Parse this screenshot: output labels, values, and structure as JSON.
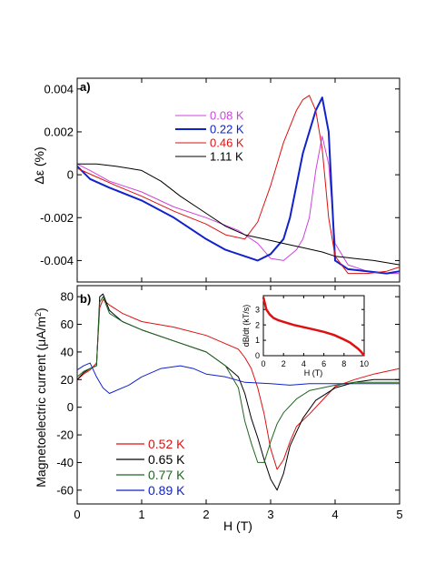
{
  "chart_data": [
    {
      "panel_label": "a)",
      "type": "line",
      "ylabel": "Δε (%)",
      "xlim": [
        0,
        5
      ],
      "ylim": [
        -0.005,
        0.0045
      ],
      "xticks": [
        0,
        1,
        2,
        3,
        4,
        5
      ],
      "yticks": [
        -0.004,
        -0.002,
        0,
        0.002,
        0.004
      ],
      "ytick_labels": [
        "-0.004",
        "-0.002",
        "0",
        "0.002",
        "0.004"
      ],
      "legend_position": "top-center",
      "series": [
        {
          "name": "0.08 K",
          "color": "#cc44dd",
          "width": 1.0,
          "x": [
            0,
            0.2,
            0.5,
            1.0,
            1.5,
            2.0,
            2.5,
            2.8,
            3.0,
            3.2,
            3.4,
            3.5,
            3.6,
            3.7,
            3.8,
            3.9,
            4.0,
            4.2,
            4.5,
            4.8,
            5.0
          ],
          "y": [
            0.0005,
            0.0002,
            -0.0003,
            -0.0008,
            -0.0015,
            -0.002,
            -0.0026,
            -0.0032,
            -0.0039,
            -0.004,
            -0.0035,
            -0.003,
            -0.002,
            0.0002,
            0.0018,
            0.0005,
            -0.0032,
            -0.0042,
            -0.0045,
            -0.0046,
            -0.0046
          ]
        },
        {
          "name": "0.22 K",
          "color": "#1122cc",
          "width": 2.0,
          "x": [
            0,
            0.2,
            0.5,
            1.0,
            1.5,
            2.0,
            2.3,
            2.6,
            2.8,
            3.0,
            3.2,
            3.3,
            3.4,
            3.5,
            3.6,
            3.7,
            3.8,
            3.9,
            4.0,
            4.2,
            4.5,
            4.8,
            5.0
          ],
          "y": [
            0.0004,
            -0.0002,
            -0.0006,
            -0.0012,
            -0.002,
            -0.003,
            -0.0035,
            -0.0038,
            -0.004,
            -0.0037,
            -0.003,
            -0.002,
            -0.0005,
            0.001,
            0.002,
            0.003,
            0.0036,
            0.002,
            -0.004,
            -0.0044,
            -0.0045,
            -0.0046,
            -0.0045
          ]
        },
        {
          "name": "0.46 K",
          "color": "#dd1111",
          "width": 1.0,
          "x": [
            0,
            0.3,
            0.6,
            1.0,
            1.5,
            2.0,
            2.3,
            2.6,
            2.8,
            3.0,
            3.2,
            3.4,
            3.5,
            3.6,
            3.7,
            3.8,
            3.9,
            4.0,
            4.2,
            4.5,
            4.8,
            5.0
          ],
          "y": [
            0.0003,
            -0.0001,
            -0.0005,
            -0.001,
            -0.0017,
            -0.0023,
            -0.0028,
            -0.003,
            -0.0022,
            -0.0005,
            0.0015,
            0.003,
            0.0035,
            0.0037,
            0.003,
            0.0012,
            -0.002,
            -0.0038,
            -0.0046,
            -0.0046,
            -0.0045,
            -0.0043
          ]
        },
        {
          "name": "1.11 K",
          "color": "#000000",
          "width": 1.0,
          "x": [
            0,
            0.3,
            0.6,
            0.8,
            1.0,
            1.3,
            1.6,
            2.0,
            2.3,
            2.6,
            2.9,
            3.2,
            3.5,
            3.8,
            4.0,
            4.3,
            4.6,
            4.8,
            5.0
          ],
          "y": [
            0.0005,
            0.0005,
            0.0004,
            0.0003,
            0.0002,
            -0.0003,
            -0.001,
            -0.0018,
            -0.0024,
            -0.0028,
            -0.003,
            -0.0032,
            -0.0034,
            -0.0036,
            -0.0038,
            -0.0039,
            -0.004,
            -0.0041,
            -0.0042
          ]
        }
      ]
    },
    {
      "panel_label": "b)",
      "type": "line",
      "xlabel": "H (T)",
      "ylabel": "Magnetoelectric current (μA/m²)",
      "ylabel_main": "Magnetoelectric current (μA/m",
      "ylabel_sup": "2",
      "ylabel_close": ")",
      "xlim": [
        0,
        5
      ],
      "ylim": [
        -70,
        88
      ],
      "xticks": [
        0,
        1,
        2,
        3,
        4,
        5
      ],
      "yticks": [
        -60,
        -40,
        -20,
        0,
        20,
        40,
        60,
        80
      ],
      "legend_position": "bottom-left",
      "series": [
        {
          "name": "0.52 K",
          "color": "#dd1111",
          "x": [
            0,
            0.1,
            0.2,
            0.3,
            0.35,
            0.4,
            0.5,
            0.7,
            1.0,
            1.5,
            2.0,
            2.3,
            2.5,
            2.6,
            2.7,
            2.8,
            2.9,
            3.0,
            3.1,
            3.2,
            3.3,
            3.4,
            3.6,
            3.8,
            4.0,
            4.3,
            4.6,
            5.0
          ],
          "y": [
            20,
            24,
            27,
            32,
            72,
            78,
            74,
            68,
            62,
            58,
            52,
            46,
            42,
            36,
            28,
            14,
            -5,
            -30,
            -45,
            -38,
            -25,
            -14,
            -5,
            5,
            15,
            20,
            24,
            28
          ]
        },
        {
          "name": "0.65 K",
          "color": "#000000",
          "x": [
            0,
            0.1,
            0.2,
            0.3,
            0.35,
            0.4,
            0.5,
            0.7,
            1.0,
            1.5,
            2.0,
            2.3,
            2.5,
            2.6,
            2.7,
            2.8,
            2.9,
            3.0,
            3.1,
            3.2,
            3.3,
            3.5,
            3.7,
            4.0,
            4.3,
            4.6,
            5.0
          ],
          "y": [
            20,
            25,
            28,
            30,
            80,
            82,
            70,
            62,
            56,
            48,
            40,
            30,
            22,
            10,
            -8,
            -22,
            -38,
            -52,
            -60,
            -48,
            -28,
            -8,
            5,
            14,
            18,
            20,
            20
          ]
        },
        {
          "name": "0.77 K",
          "color": "#226622",
          "x": [
            0,
            0.1,
            0.2,
            0.3,
            0.35,
            0.4,
            0.5,
            0.7,
            1.0,
            1.5,
            2.0,
            2.3,
            2.5,
            2.6,
            2.7,
            2.8,
            2.9,
            3.0,
            3.1,
            3.2,
            3.4,
            3.6,
            3.8,
            4.0,
            4.3,
            4.6,
            5.0
          ],
          "y": [
            22,
            26,
            28,
            30,
            76,
            80,
            68,
            62,
            56,
            48,
            40,
            30,
            14,
            -10,
            -26,
            -40,
            -40,
            -25,
            -12,
            -4,
            6,
            12,
            14,
            16,
            18,
            18,
            18
          ]
        },
        {
          "name": "0.89 K",
          "color": "#1122cc",
          "x": [
            0,
            0.1,
            0.2,
            0.3,
            0.4,
            0.5,
            0.8,
            1.0,
            1.3,
            1.6,
            1.8,
            2.0,
            2.3,
            2.6,
            3.0,
            3.3,
            3.6,
            4.0,
            4.4,
            4.8,
            5.0
          ],
          "y": [
            27,
            30,
            32,
            22,
            14,
            10,
            16,
            22,
            28,
            30,
            28,
            24,
            22,
            18,
            17,
            16,
            17,
            17,
            17,
            17,
            17
          ]
        }
      ],
      "inset": {
        "type": "line",
        "xlabel": "H (T)",
        "ylabel": "dB/dt (kT/s)",
        "xlim": [
          0,
          10
        ],
        "ylim": [
          0,
          3.9
        ],
        "xticks": [
          0,
          2,
          4,
          6,
          8,
          10
        ],
        "yticks": [
          0,
          1,
          2,
          3
        ],
        "series": [
          {
            "color": "#dd1111",
            "x": [
              0,
              0.3,
              0.6,
              1.0,
              1.5,
              2.0,
              3.0,
              4.0,
              5.0,
              6.0,
              7.0,
              8.0,
              8.6,
              9.0,
              9.4,
              9.7,
              10.0
            ],
            "y": [
              3.8,
              3.0,
              2.7,
              2.45,
              2.3,
              2.2,
              2.0,
              1.85,
              1.7,
              1.55,
              1.35,
              1.05,
              0.85,
              0.65,
              0.45,
              0.25,
              0.0
            ]
          }
        ]
      }
    }
  ]
}
